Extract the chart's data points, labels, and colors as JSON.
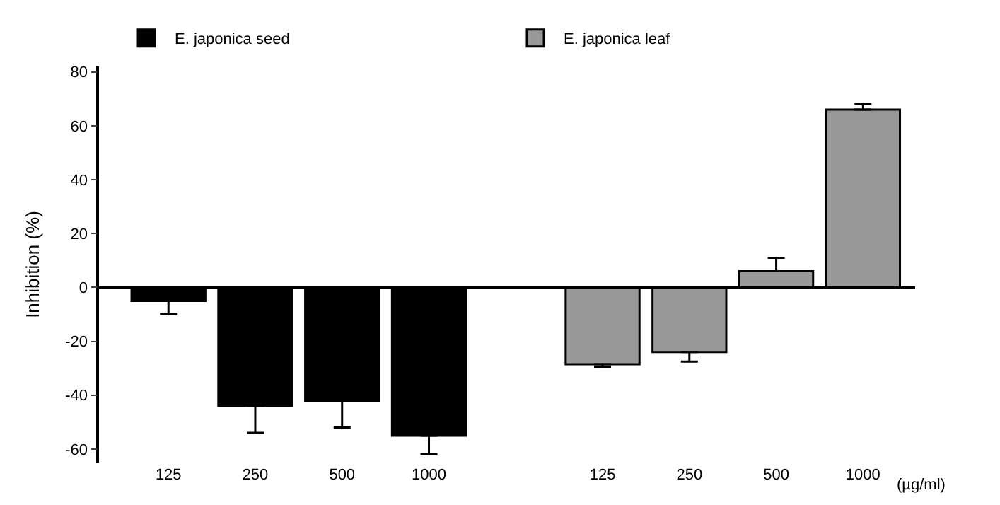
{
  "chart_data": {
    "type": "bar",
    "ylabel": "Inhibition (%)",
    "xlabel": "(µg/ml)",
    "categories": [
      "125",
      "250",
      "500",
      "1000",
      null,
      "125",
      "250",
      "500",
      "1000"
    ],
    "series": [
      {
        "name": "E. japonica seed",
        "color": "#000000",
        "values": [
          -5,
          -44,
          -42,
          -55,
          null,
          null,
          null,
          null,
          null
        ],
        "errors": [
          [
            -10,
            -5
          ],
          [
            -54,
            -44
          ],
          [
            -52,
            -42
          ],
          [
            -62,
            -55
          ],
          null,
          null,
          null,
          null,
          null
        ]
      },
      {
        "name": "E. japonica leaf",
        "color": "#999999",
        "values": [
          null,
          null,
          null,
          null,
          null,
          -28.5,
          -24,
          6,
          66
        ],
        "errors": [
          null,
          null,
          null,
          null,
          null,
          [
            -29.5,
            -28.5
          ],
          [
            -27.5,
            -24
          ],
          [
            6,
            11
          ],
          [
            66,
            68
          ]
        ]
      }
    ],
    "ylim": [
      -65,
      82
    ],
    "yticks": [
      -60,
      -40,
      -20,
      0,
      20,
      40,
      60,
      80
    ],
    "ref_lines": [
      {
        "axis": "y",
        "value": 0
      }
    ],
    "legend": "top"
  }
}
